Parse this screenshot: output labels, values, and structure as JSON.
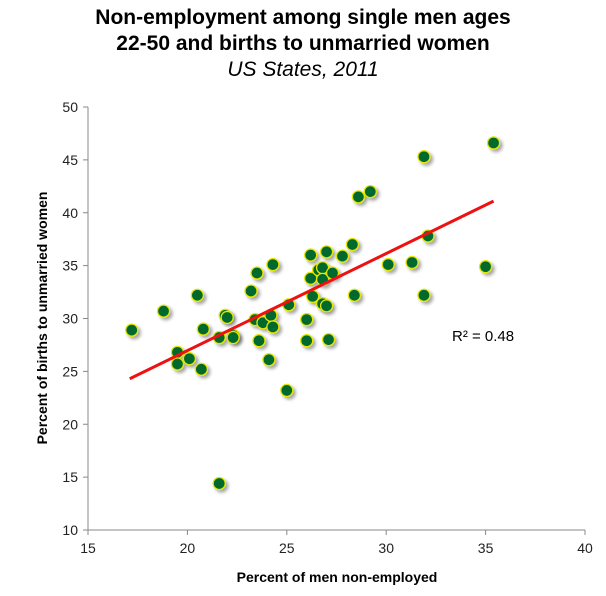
{
  "chart_data": {
    "type": "scatter",
    "title": "Non-employment among single men ages",
    "title_line2": "22-50 and births to unmarried women",
    "subtitle": "US States, 2011",
    "xlabel": "Percent of men non-employed",
    "ylabel": "Percent of births to unmarried women",
    "xlim": [
      15,
      40
    ],
    "ylim": [
      10,
      50
    ],
    "xticks": [
      "15",
      "20",
      "25",
      "30",
      "35",
      "40"
    ],
    "yticks": [
      "10",
      "15",
      "20",
      "25",
      "30",
      "35",
      "40",
      "45",
      "50"
    ],
    "grid": false,
    "annotation": "R² = 0.48",
    "trendline": {
      "x": [
        17.1,
        35.4
      ],
      "y": [
        24.3,
        41.1
      ],
      "color": "#ee1111"
    },
    "marker_color": "#006b2e",
    "marker_edge": "#e6e600",
    "points": [
      [
        17.2,
        28.9
      ],
      [
        18.8,
        30.7
      ],
      [
        20.5,
        32.2
      ],
      [
        19.5,
        26.8
      ],
      [
        19.5,
        25.7
      ],
      [
        20.1,
        26.2
      ],
      [
        20.7,
        25.2
      ],
      [
        20.8,
        29.0
      ],
      [
        21.9,
        30.3
      ],
      [
        22.0,
        30.1
      ],
      [
        21.6,
        28.2
      ],
      [
        22.3,
        28.4
      ],
      [
        22.3,
        28.2
      ],
      [
        23.2,
        32.6
      ],
      [
        23.5,
        34.3
      ],
      [
        24.3,
        35.1
      ],
      [
        23.4,
        29.9
      ],
      [
        23.8,
        29.6
      ],
      [
        24.2,
        30.3
      ],
      [
        24.3,
        29.2
      ],
      [
        23.6,
        27.9
      ],
      [
        24.1,
        26.1
      ],
      [
        25.0,
        23.2
      ],
      [
        25.1,
        31.3
      ],
      [
        26.2,
        36.0
      ],
      [
        27.0,
        36.3
      ],
      [
        27.8,
        35.9
      ],
      [
        28.3,
        37.0
      ],
      [
        26.2,
        33.8
      ],
      [
        26.6,
        34.6
      ],
      [
        26.8,
        34.8
      ],
      [
        26.8,
        33.7
      ],
      [
        27.3,
        34.3
      ],
      [
        26.3,
        32.1
      ],
      [
        26.8,
        31.4
      ],
      [
        27.0,
        31.2
      ],
      [
        26.0,
        29.9
      ],
      [
        26.0,
        27.9
      ],
      [
        27.1,
        28.0
      ],
      [
        28.4,
        32.2
      ],
      [
        35.4,
        46.6
      ],
      [
        31.9,
        45.3
      ],
      [
        28.6,
        41.5
      ],
      [
        29.2,
        42.0
      ],
      [
        32.1,
        37.8
      ],
      [
        30.1,
        35.1
      ],
      [
        31.3,
        35.3
      ],
      [
        35.0,
        34.9
      ],
      [
        31.9,
        32.2
      ],
      [
        21.6,
        14.4
      ]
    ]
  }
}
